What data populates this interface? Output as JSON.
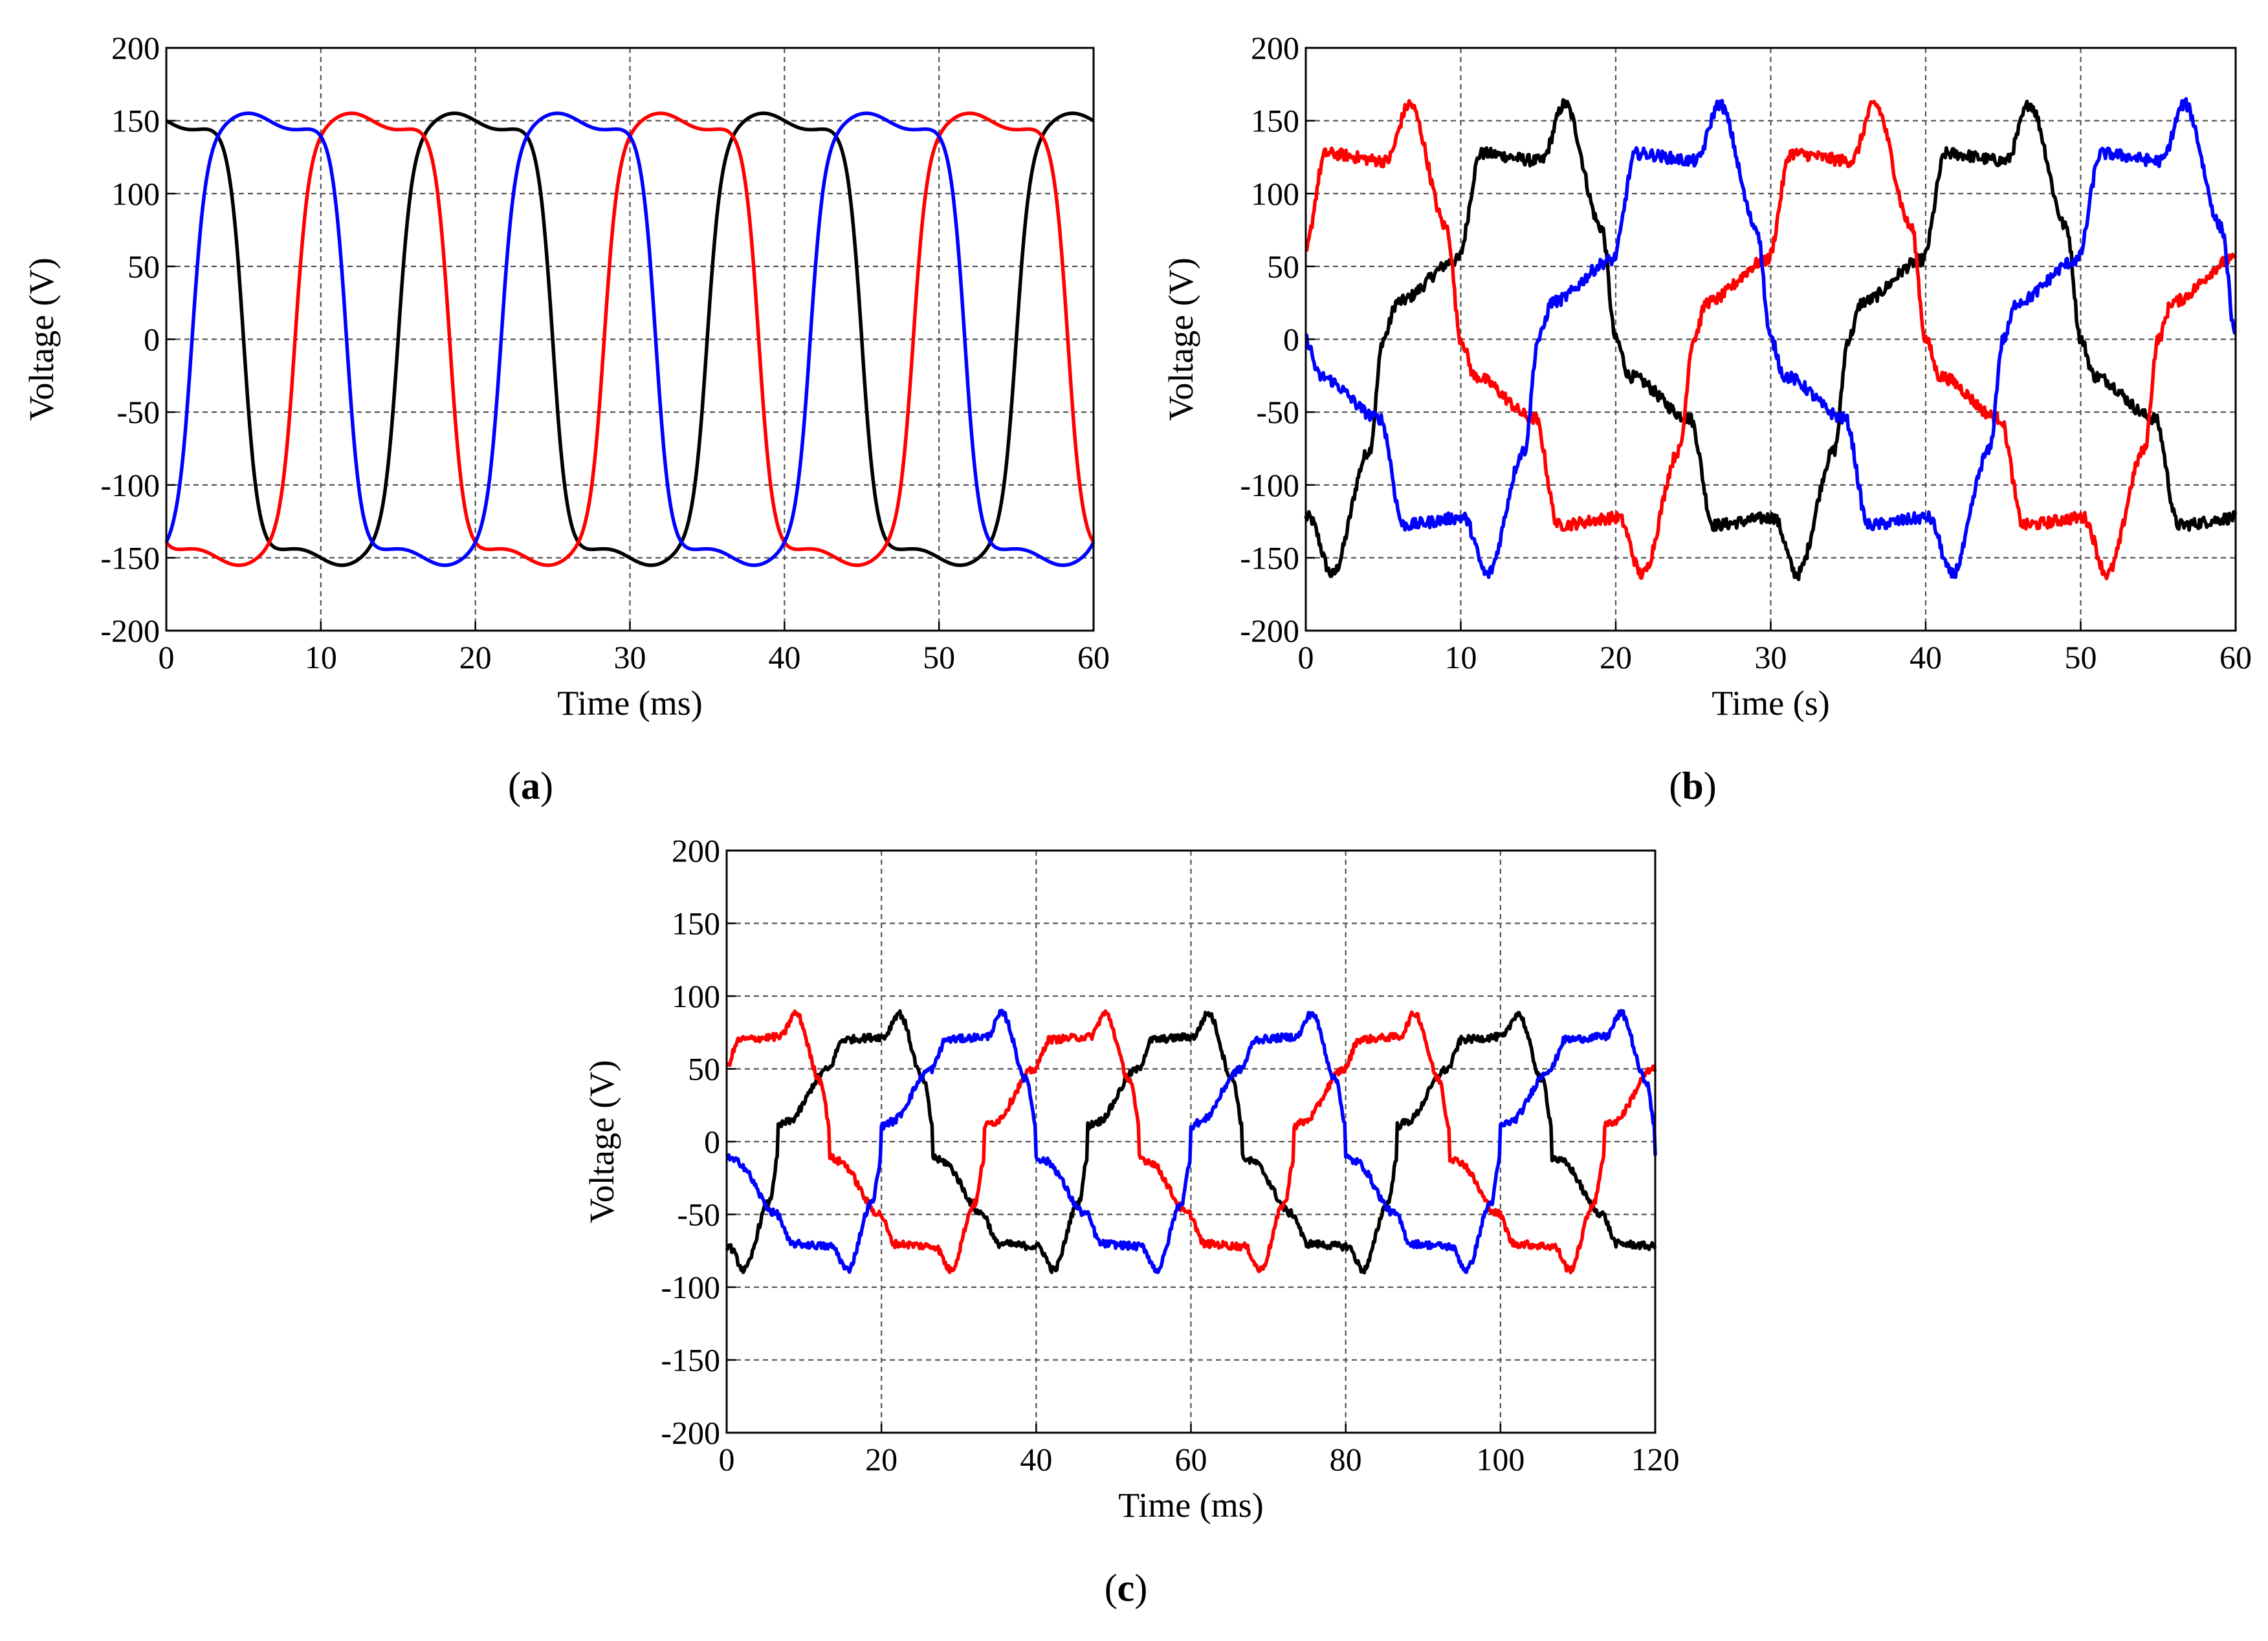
{
  "chart_data": [
    {
      "type": "line",
      "panel_label": "a",
      "xlabel": "Time (ms)",
      "ylabel": "Voltage (V)",
      "xlim": [
        0,
        60
      ],
      "ylim": [
        -200,
        200
      ],
      "xticks": [
        0,
        10,
        20,
        30,
        40,
        50,
        60
      ],
      "yticks": [
        -200,
        -150,
        -100,
        -50,
        0,
        50,
        100,
        150,
        200
      ],
      "grid": true,
      "waveform": {
        "shape": "smooth",
        "amplitude": 150,
        "period": 20,
        "dip": 0.07,
        "flat_levels": [
          0.15,
          0.02
        ],
        "edge_sharpness": 0.6,
        "noise": 0
      },
      "series": [
        {
          "name": "phase-black",
          "color": "#000000",
          "phase_deg": 90
        },
        {
          "name": "phase-red",
          "color": "#ff0000",
          "phase_deg": 210
        },
        {
          "name": "phase-blue",
          "color": "#0000ff",
          "phase_deg": 330
        }
      ]
    },
    {
      "type": "line",
      "panel_label": "b",
      "xlabel": "Time (s)",
      "ylabel": "Voltage (V)",
      "xlim": [
        0,
        60
      ],
      "ylim": [
        -200,
        200
      ],
      "xticks": [
        0,
        10,
        20,
        30,
        40,
        50,
        60
      ],
      "yticks": [
        -200,
        -150,
        -100,
        -50,
        0,
        50,
        100,
        150,
        200
      ],
      "grid": true,
      "waveform": {
        "shape": "stepped",
        "amplitude": 170,
        "period": 30,
        "levels": [
          0.0,
          0.15,
          0.32,
          0.75,
          0.72,
          0.95
        ],
        "noise": 4
      },
      "series": [
        {
          "name": "phase-black",
          "color": "#000000",
          "phase_deg": 300
        },
        {
          "name": "phase-red",
          "color": "#ff0000",
          "phase_deg": 60
        },
        {
          "name": "phase-blue",
          "color": "#0000ff",
          "phase_deg": 180
        }
      ]
    },
    {
      "type": "line",
      "panel_label": "c",
      "xlabel": "Time (ms)",
      "ylabel": "Voltage (V)",
      "xlim": [
        0,
        120
      ],
      "ylim": [
        -200,
        200
      ],
      "xticks": [
        0,
        20,
        40,
        60,
        80,
        100,
        120
      ],
      "yticks": [
        -200,
        -150,
        -100,
        -50,
        0,
        50,
        100,
        150,
        200
      ],
      "grid": true,
      "waveform": {
        "shape": "stepped",
        "amplitude": 90,
        "period": 40,
        "levels": [
          0.12,
          0.15,
          0.55,
          0.78,
          0.8,
          0.98
        ],
        "noise": 2.5
      },
      "series": [
        {
          "name": "phase-black",
          "color": "#000000",
          "phase_deg": 300
        },
        {
          "name": "phase-red",
          "color": "#ff0000",
          "phase_deg": 60
        },
        {
          "name": "phase-blue",
          "color": "#0000ff",
          "phase_deg": 180
        }
      ]
    }
  ]
}
